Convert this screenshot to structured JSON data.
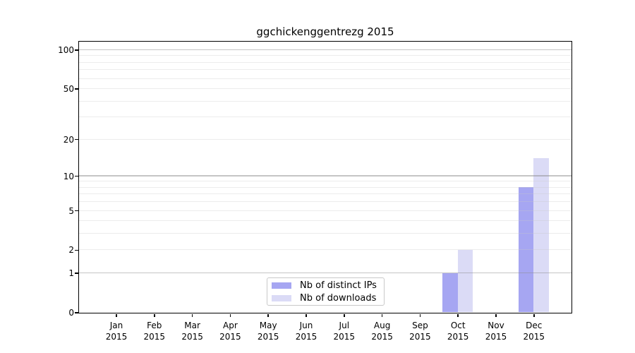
{
  "chart_data": {
    "type": "bar",
    "title": "ggchickenggentrezg 2015",
    "categories": [
      "Jan",
      "Feb",
      "Mar",
      "Apr",
      "May",
      "Jun",
      "Jul",
      "Aug",
      "Sep",
      "Oct",
      "Nov",
      "Dec"
    ],
    "year": "2015",
    "series": [
      {
        "name": "Nb of distinct IPs",
        "color": "#a6a6f2",
        "values": [
          0,
          0,
          0,
          0,
          0,
          0,
          0,
          0,
          0,
          1,
          0,
          8
        ]
      },
      {
        "name": "Nb of downloads",
        "color": "#dbdbf6",
        "values": [
          0,
          0,
          0,
          0,
          0,
          0,
          0,
          0,
          0,
          2,
          0,
          14
        ]
      }
    ],
    "y_axis": {
      "scale": "log1p",
      "ticks": [
        0,
        1,
        2,
        5,
        10,
        20,
        50,
        100
      ],
      "range_max": 116,
      "major_gridlines": [
        1,
        10,
        100
      ],
      "minor_gridlines": [
        2,
        3,
        4,
        5,
        6,
        7,
        8,
        9,
        20,
        30,
        40,
        50,
        60,
        70,
        80,
        90
      ]
    },
    "x_axis": {
      "label_line2": "2015"
    },
    "legend": {
      "position": "lower center"
    },
    "grid": "on",
    "background_color": "#ffffff",
    "text_color": "#000000"
  }
}
